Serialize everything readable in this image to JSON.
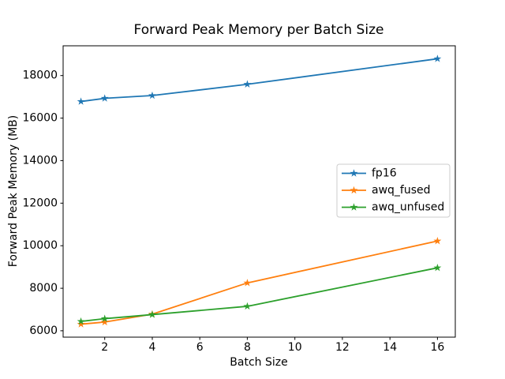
{
  "chart_data": {
    "type": "line",
    "title": "Forward Peak Memory per Batch Size",
    "xlabel": "Batch Size",
    "ylabel": "Forward Peak Memory (MB)",
    "x": [
      1,
      2,
      4,
      8,
      16
    ],
    "series": [
      {
        "name": "fp16",
        "color": "#1f77b4",
        "marker": "star",
        "values": [
          16780,
          16930,
          17060,
          17590,
          18790
        ]
      },
      {
        "name": "awq_fused",
        "color": "#ff7f0e",
        "marker": "star",
        "values": [
          6310,
          6410,
          6780,
          8250,
          10220
        ]
      },
      {
        "name": "awq_unfused",
        "color": "#2ca02c",
        "marker": "star",
        "values": [
          6440,
          6570,
          6760,
          7150,
          8960
        ]
      }
    ],
    "x_ticks": [
      2,
      4,
      6,
      8,
      10,
      12,
      14,
      16
    ],
    "y_ticks": [
      6000,
      8000,
      10000,
      12000,
      14000,
      16000,
      18000
    ],
    "xlim": [
      0.25,
      16.75
    ],
    "ylim": [
      5700,
      19400
    ],
    "grid": false,
    "legend": {
      "position": "center-right",
      "entries": [
        "fp16",
        "awq_fused",
        "awq_unfused"
      ]
    },
    "colors": {
      "spine": "#000000",
      "text": "#000000",
      "legend_border": "#cccccc",
      "background": "#ffffff"
    }
  }
}
